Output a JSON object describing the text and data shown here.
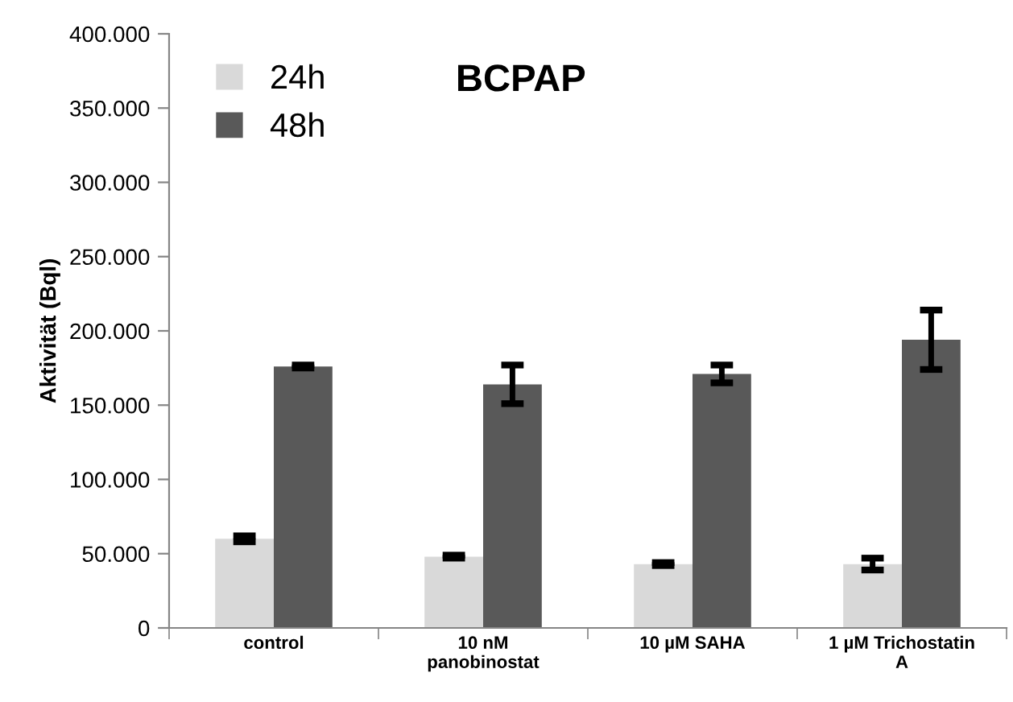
{
  "chart_data": {
    "type": "bar",
    "title": "BCPAP",
    "ylabel": "Aktivität (Bql)",
    "categories": [
      "control",
      "10 nM\npanobinostat",
      "10 µM SAHA",
      "1 µM Trichostatin\nA"
    ],
    "series": [
      {
        "name": "24h",
        "color": "#d9d9d9",
        "values": [
          60000,
          48000,
          43000,
          43000
        ],
        "errors": [
          2000,
          1000,
          1000,
          4000
        ]
      },
      {
        "name": "48h",
        "color": "#595959",
        "values": [
          176000,
          164000,
          171000,
          194000
        ],
        "errors": [
          1000,
          13000,
          6000,
          20000
        ]
      }
    ],
    "ylim": [
      0,
      400000
    ],
    "yticks": [
      0,
      {
        "value": 50000,
        "label": "50.000"
      },
      {
        "value": 100000,
        "label": "100.000"
      },
      {
        "value": 150000,
        "label": "150.000"
      },
      {
        "value": 200000,
        "label": "200.000"
      },
      {
        "value": 250000,
        "label": "250.000"
      },
      {
        "value": 300000,
        "label": "300.000"
      },
      {
        "value": 350000,
        "label": "350.000"
      },
      {
        "value": 400000,
        "label": "400.000"
      }
    ],
    "grid": false,
    "legend": "top left"
  }
}
